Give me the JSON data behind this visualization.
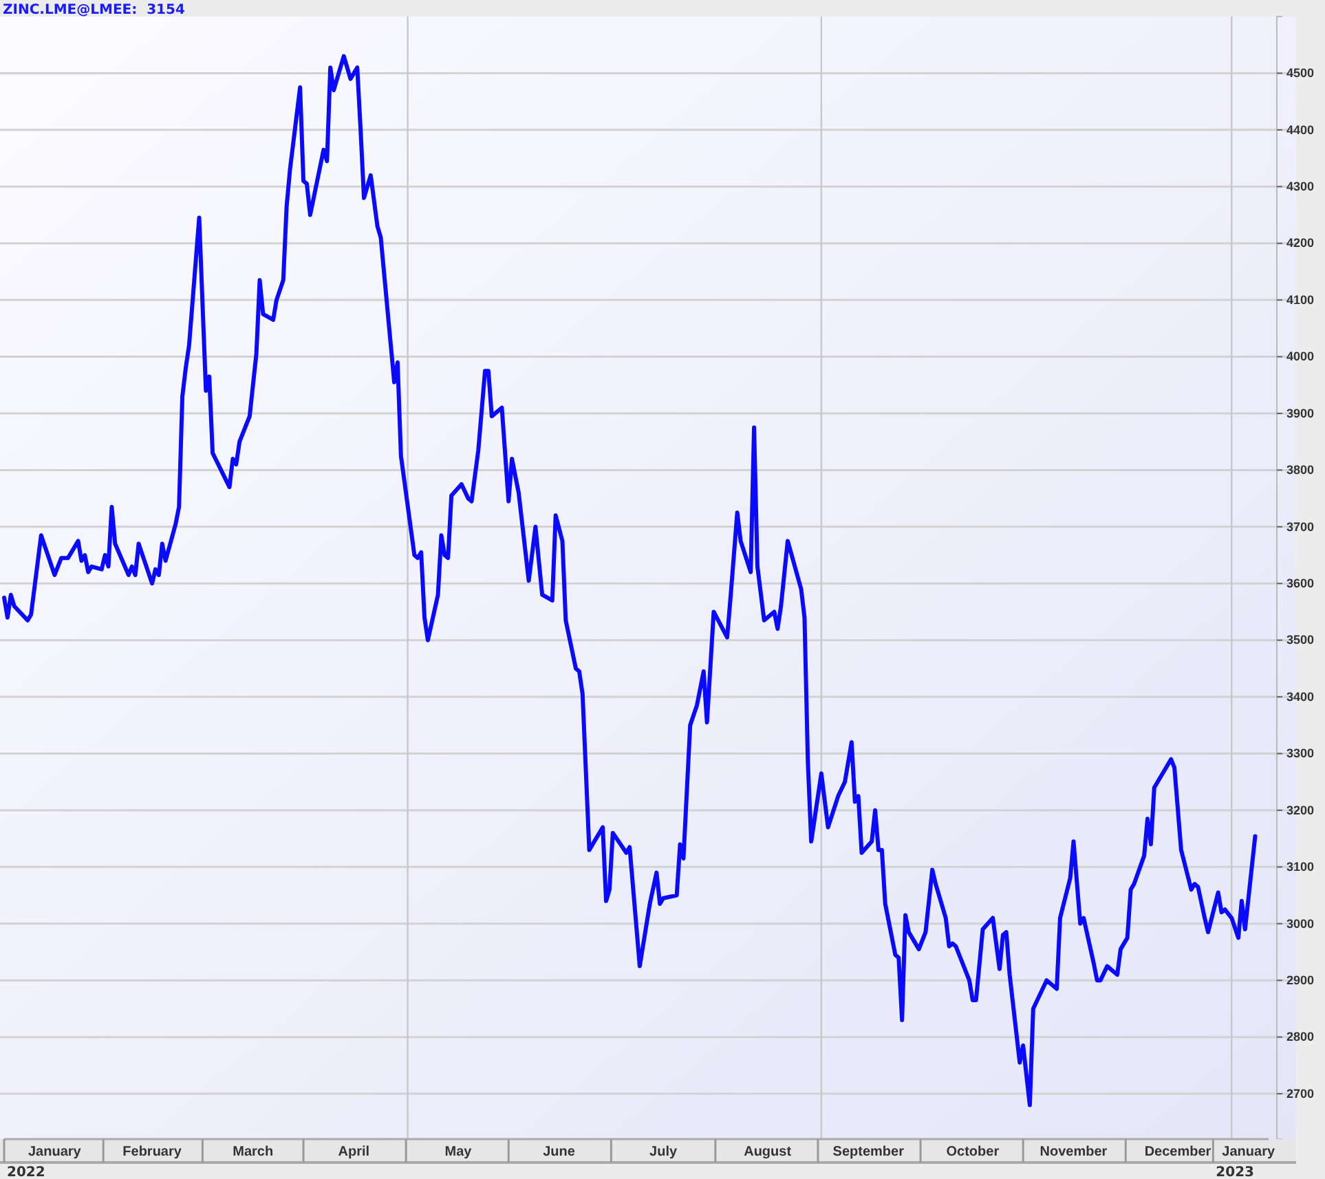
{
  "chart_data": {
    "type": "line",
    "title": "ZINC.LME@LMEE:  3154",
    "x": [
      "2022-01-01",
      "2022-01-02",
      "2022-01-03",
      "2022-01-04",
      "2022-01-08",
      "2022-01-09",
      "2022-01-12",
      "2022-01-14",
      "2022-01-16",
      "2022-01-18",
      "2022-01-20",
      "2022-01-23",
      "2022-01-24",
      "2022-01-25",
      "2022-01-26",
      "2022-01-27",
      "2022-01-30",
      "2022-01-31",
      "2022-02-01",
      "2022-02-02",
      "2022-02-03",
      "2022-02-07",
      "2022-02-08",
      "2022-02-09",
      "2022-02-10",
      "2022-02-14",
      "2022-02-15",
      "2022-02-16",
      "2022-02-17",
      "2022-02-18",
      "2022-02-21",
      "2022-02-22",
      "2022-02-23",
      "2022-02-24",
      "2022-02-25",
      "2022-02-28",
      "2022-03-02",
      "2022-03-03",
      "2022-03-04",
      "2022-03-09",
      "2022-03-10",
      "2022-03-11",
      "2022-03-12",
      "2022-03-15",
      "2022-03-17",
      "2022-03-18",
      "2022-03-19",
      "2022-03-22",
      "2022-03-23",
      "2022-03-25",
      "2022-03-26",
      "2022-03-27",
      "2022-03-30",
      "2022-03-31",
      "2022-04-01",
      "2022-04-02",
      "2022-04-06",
      "2022-04-07",
      "2022-04-08",
      "2022-04-09",
      "2022-04-12",
      "2022-04-14",
      "2022-04-16",
      "2022-04-17",
      "2022-04-18",
      "2022-04-20",
      "2022-04-22",
      "2022-04-23",
      "2022-04-27",
      "2022-04-28",
      "2022-04-29",
      "2022-05-03",
      "2022-05-04",
      "2022-05-05",
      "2022-05-06",
      "2022-05-07",
      "2022-05-10",
      "2022-05-11",
      "2022-05-12",
      "2022-05-13",
      "2022-05-14",
      "2022-05-17",
      "2022-05-19",
      "2022-05-20",
      "2022-05-22",
      "2022-05-24",
      "2022-05-25",
      "2022-05-26",
      "2022-05-29",
      "2022-05-31",
      "2022-06-01",
      "2022-06-03",
      "2022-06-06",
      "2022-06-08",
      "2022-06-10",
      "2022-06-13",
      "2022-06-14",
      "2022-06-16",
      "2022-06-17",
      "2022-06-20",
      "2022-06-21",
      "2022-06-22",
      "2022-06-24",
      "2022-06-28",
      "2022-06-29",
      "2022-06-30",
      "2022-07-01",
      "2022-07-05",
      "2022-07-06",
      "2022-07-09",
      "2022-07-12",
      "2022-07-14",
      "2022-07-15",
      "2022-07-16",
      "2022-07-20",
      "2022-07-21",
      "2022-07-22",
      "2022-07-24",
      "2022-07-26",
      "2022-07-28",
      "2022-07-29",
      "2022-07-31",
      "2022-08-04",
      "2022-08-05",
      "2022-08-07",
      "2022-08-08",
      "2022-08-11",
      "2022-08-12",
      "2022-08-13",
      "2022-08-15",
      "2022-08-18",
      "2022-08-19",
      "2022-08-20",
      "2022-08-22",
      "2022-08-26",
      "2022-08-27",
      "2022-08-28",
      "2022-08-29",
      "2022-09-01",
      "2022-09-03",
      "2022-09-06",
      "2022-09-08",
      "2022-09-10",
      "2022-09-11",
      "2022-09-12",
      "2022-09-13",
      "2022-09-16",
      "2022-09-17",
      "2022-09-18",
      "2022-09-19",
      "2022-09-20",
      "2022-09-23",
      "2022-09-24",
      "2022-09-25",
      "2022-09-26",
      "2022-09-27",
      "2022-09-30",
      "2022-10-02",
      "2022-10-04",
      "2022-10-05",
      "2022-10-08",
      "2022-10-09",
      "2022-10-10",
      "2022-10-11",
      "2022-10-15",
      "2022-10-16",
      "2022-10-17",
      "2022-10-19",
      "2022-10-22",
      "2022-10-24",
      "2022-10-25",
      "2022-10-26",
      "2022-10-27",
      "2022-10-30",
      "2022-10-31",
      "2022-11-02",
      "2022-11-03",
      "2022-11-07",
      "2022-11-10",
      "2022-11-11",
      "2022-11-14",
      "2022-11-15",
      "2022-11-17",
      "2022-11-18",
      "2022-11-21",
      "2022-11-22",
      "2022-11-23",
      "2022-11-25",
      "2022-11-28",
      "2022-11-29",
      "2022-12-01",
      "2022-12-02",
      "2022-12-03",
      "2022-12-06",
      "2022-12-07",
      "2022-12-08",
      "2022-12-09",
      "2022-12-10",
      "2022-12-14",
      "2022-12-15",
      "2022-12-17",
      "2022-12-20",
      "2022-12-21",
      "2022-12-22",
      "2022-12-24",
      "2022-12-25",
      "2022-12-28",
      "2022-12-29",
      "2022-12-30",
      "2023-01-01",
      "2023-01-03",
      "2023-01-04",
      "2023-01-05",
      "2023-01-08"
    ],
    "series": [
      {
        "color": "#0a0aff",
        "values": [
          3575,
          3540,
          3580,
          3560,
          3535,
          3545,
          3685,
          3650,
          3615,
          3645,
          3645,
          3675,
          3640,
          3650,
          3620,
          3630,
          3625,
          3650,
          3630,
          3735,
          3670,
          3615,
          3630,
          3615,
          3670,
          3600,
          3625,
          3615,
          3670,
          3640,
          3705,
          3735,
          3930,
          3980,
          4020,
          4245,
          3940,
          3965,
          3830,
          3770,
          3820,
          3810,
          3850,
          3895,
          4005,
          4135,
          4075,
          4065,
          4100,
          4135,
          4265,
          4330,
          4475,
          4310,
          4305,
          4250,
          4365,
          4345,
          4510,
          4470,
          4530,
          4490,
          4510,
          4400,
          4280,
          4320,
          4230,
          4210,
          3955,
          3990,
          3825,
          3650,
          3645,
          3655,
          3540,
          3500,
          3580,
          3685,
          3650,
          3645,
          3755,
          3775,
          3750,
          3745,
          3835,
          3975,
          3975,
          3895,
          3910,
          3745,
          3820,
          3760,
          3605,
          3700,
          3580,
          3570,
          3720,
          3675,
          3535,
          3450,
          3445,
          3405,
          3130,
          3170,
          3040,
          3060,
          3160,
          3125,
          3135,
          2925,
          3035,
          3090,
          3035,
          3045,
          3050,
          3140,
          3115,
          3350,
          3385,
          3445,
          3355,
          3550,
          3505,
          3575,
          3725,
          3675,
          3620,
          3875,
          3630,
          3535,
          3550,
          3520,
          3560,
          3675,
          3590,
          3540,
          3285,
          3145,
          3265,
          3170,
          3225,
          3250,
          3320,
          3215,
          3225,
          3125,
          3145,
          3200,
          3130,
          3130,
          3035,
          2945,
          2940,
          2830,
          3015,
          2985,
          2955,
          2985,
          3095,
          3070,
          3010,
          2960,
          2965,
          2960,
          2900,
          2865,
          2865,
          2990,
          3010,
          2920,
          2980,
          2985,
          2910,
          2755,
          2785,
          2680,
          2850,
          2900,
          2885,
          3010,
          3080,
          3145,
          3000,
          3010,
          2930,
          2900,
          2900,
          2925,
          2910,
          2955,
          2975,
          3060,
          3070,
          3120,
          3185,
          3140,
          3240,
          3250,
          3290,
          3275,
          3130,
          3060,
          3070,
          3065,
          3010,
          2985,
          3055,
          3020,
          3025,
          3010,
          2975,
          3040,
          2990,
          3154
        ]
      }
    ],
    "xlim": [
      "2022-01-01",
      "2023-01-12"
    ],
    "xticks": [
      {
        "value": "2022-01-16",
        "label": "January"
      },
      {
        "value": "2022-02-14",
        "label": "February"
      },
      {
        "value": "2022-03-16",
        "label": "March"
      },
      {
        "value": "2022-04-15",
        "label": "April"
      },
      {
        "value": "2022-05-16",
        "label": "May"
      },
      {
        "value": "2022-06-15",
        "label": "June"
      },
      {
        "value": "2022-07-16",
        "label": "July"
      },
      {
        "value": "2022-08-16",
        "label": "August"
      },
      {
        "value": "2022-09-15",
        "label": "September"
      },
      {
        "value": "2022-10-16",
        "label": "October"
      },
      {
        "value": "2022-11-15",
        "label": "November"
      },
      {
        "value": "2022-12-16",
        "label": "December"
      },
      {
        "value": "2023-01-06",
        "label": "January"
      }
    ],
    "ylim": [
      2620,
      4600
    ],
    "yticks": [
      2700,
      2800,
      2900,
      3000,
      3100,
      3200,
      3300,
      3400,
      3500,
      3600,
      3700,
      3800,
      3900,
      4000,
      4100,
      4200,
      4300,
      4400,
      4500
    ],
    "grid": "y",
    "line_style": "solid",
    "ref_lines": [
      {
        "axis": "x",
        "value": "2022-05-01",
        "color": "#c8c8c8"
      },
      {
        "axis": "x",
        "value": "2022-09-01",
        "color": "#c8c8c8"
      },
      {
        "axis": "x",
        "value": "2023-01-01",
        "color": "#c8c8c8"
      }
    ],
    "annotations": [
      "2022",
      "2023"
    ]
  }
}
